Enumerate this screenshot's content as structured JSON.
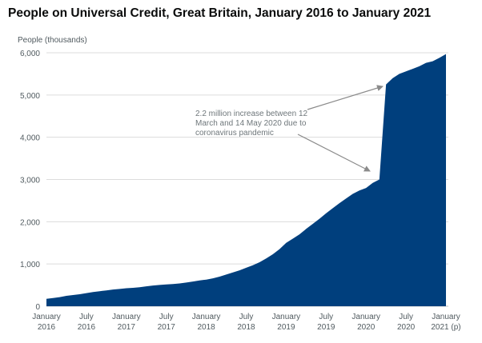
{
  "chart_data": {
    "type": "area",
    "title": "People on Universal Credit, Great Britain, January 2016 to January 2021",
    "ylabel": "People (thousands)",
    "xlabel": "",
    "ylim": [
      0,
      6000
    ],
    "yticks": [
      0,
      1000,
      2000,
      3000,
      4000,
      5000,
      6000
    ],
    "ytick_labels": [
      "0",
      "1,000",
      "2,000",
      "3,000",
      "4,000",
      "5,000",
      "6,000"
    ],
    "xtick_labels": [
      [
        "January",
        "2016"
      ],
      [
        "July",
        "2016"
      ],
      [
        "January",
        "2017"
      ],
      [
        "July",
        "2017"
      ],
      [
        "January",
        "2018"
      ],
      [
        "July",
        "2018"
      ],
      [
        "January",
        "2019"
      ],
      [
        "July",
        "2019"
      ],
      [
        "January",
        "2020"
      ],
      [
        "July",
        "2020"
      ],
      [
        "January",
        "2021 (p)"
      ]
    ],
    "grid": true,
    "color": "#003f7d",
    "series": [
      {
        "months": [
          "2016-01",
          "2016-02",
          "2016-03",
          "2016-04",
          "2016-05",
          "2016-06",
          "2016-07",
          "2016-08",
          "2016-09",
          "2016-10",
          "2016-11",
          "2016-12",
          "2017-01",
          "2017-02",
          "2017-03",
          "2017-04",
          "2017-05",
          "2017-06",
          "2017-07",
          "2017-08",
          "2017-09",
          "2017-10",
          "2017-11",
          "2017-12",
          "2018-01",
          "2018-02",
          "2018-03",
          "2018-04",
          "2018-05",
          "2018-06",
          "2018-07",
          "2018-08",
          "2018-09",
          "2018-10",
          "2018-11",
          "2018-12",
          "2019-01",
          "2019-02",
          "2019-03",
          "2019-04",
          "2019-05",
          "2019-06",
          "2019-07",
          "2019-08",
          "2019-09",
          "2019-10",
          "2019-11",
          "2019-12",
          "2020-01",
          "2020-02",
          "2020-03",
          "2020-04",
          "2020-05",
          "2020-06",
          "2020-07",
          "2020-08",
          "2020-09",
          "2020-10",
          "2020-11",
          "2020-12",
          "2021-01"
        ],
        "values": [
          175,
          195,
          215,
          245,
          265,
          285,
          310,
          335,
          355,
          375,
          395,
          410,
          425,
          435,
          450,
          470,
          490,
          505,
          515,
          525,
          540,
          560,
          585,
          610,
          630,
          660,
          700,
          750,
          800,
          850,
          910,
          970,
          1040,
          1130,
          1230,
          1350,
          1500,
          1600,
          1700,
          1830,
          1950,
          2070,
          2200,
          2320,
          2440,
          2550,
          2660,
          2740,
          2800,
          2920,
          3000,
          5250,
          5400,
          5500,
          5560,
          5620,
          5680,
          5760,
          5800,
          5880,
          5970
        ]
      }
    ],
    "annotation": {
      "lines": [
        "2.2 million increase between 12",
        "March and 14 May 2020 due to",
        "coronavirus pandemic"
      ]
    }
  }
}
